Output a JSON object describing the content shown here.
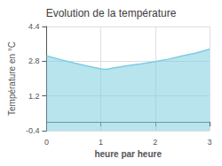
{
  "chart_data": {
    "type": "area",
    "title": "Evolution de la température",
    "xlabel": "heure par heure",
    "ylabel": "Température en °C",
    "x": [
      0,
      0.25,
      0.5,
      0.75,
      1.0,
      1.1,
      1.25,
      1.5,
      1.75,
      2.0,
      2.25,
      2.5,
      2.75,
      3.0
    ],
    "values": [
      3.05,
      2.88,
      2.72,
      2.58,
      2.45,
      2.43,
      2.5,
      2.6,
      2.68,
      2.78,
      2.9,
      3.05,
      3.18,
      3.35
    ],
    "color": "#7dcde0",
    "xlim": [
      0,
      3
    ],
    "ylim": [
      -0.4,
      4.4
    ],
    "xticks": [
      0,
      1,
      2,
      3
    ],
    "yticks": [
      -0.4,
      1.2,
      2.8,
      4.4
    ],
    "grid": true
  }
}
